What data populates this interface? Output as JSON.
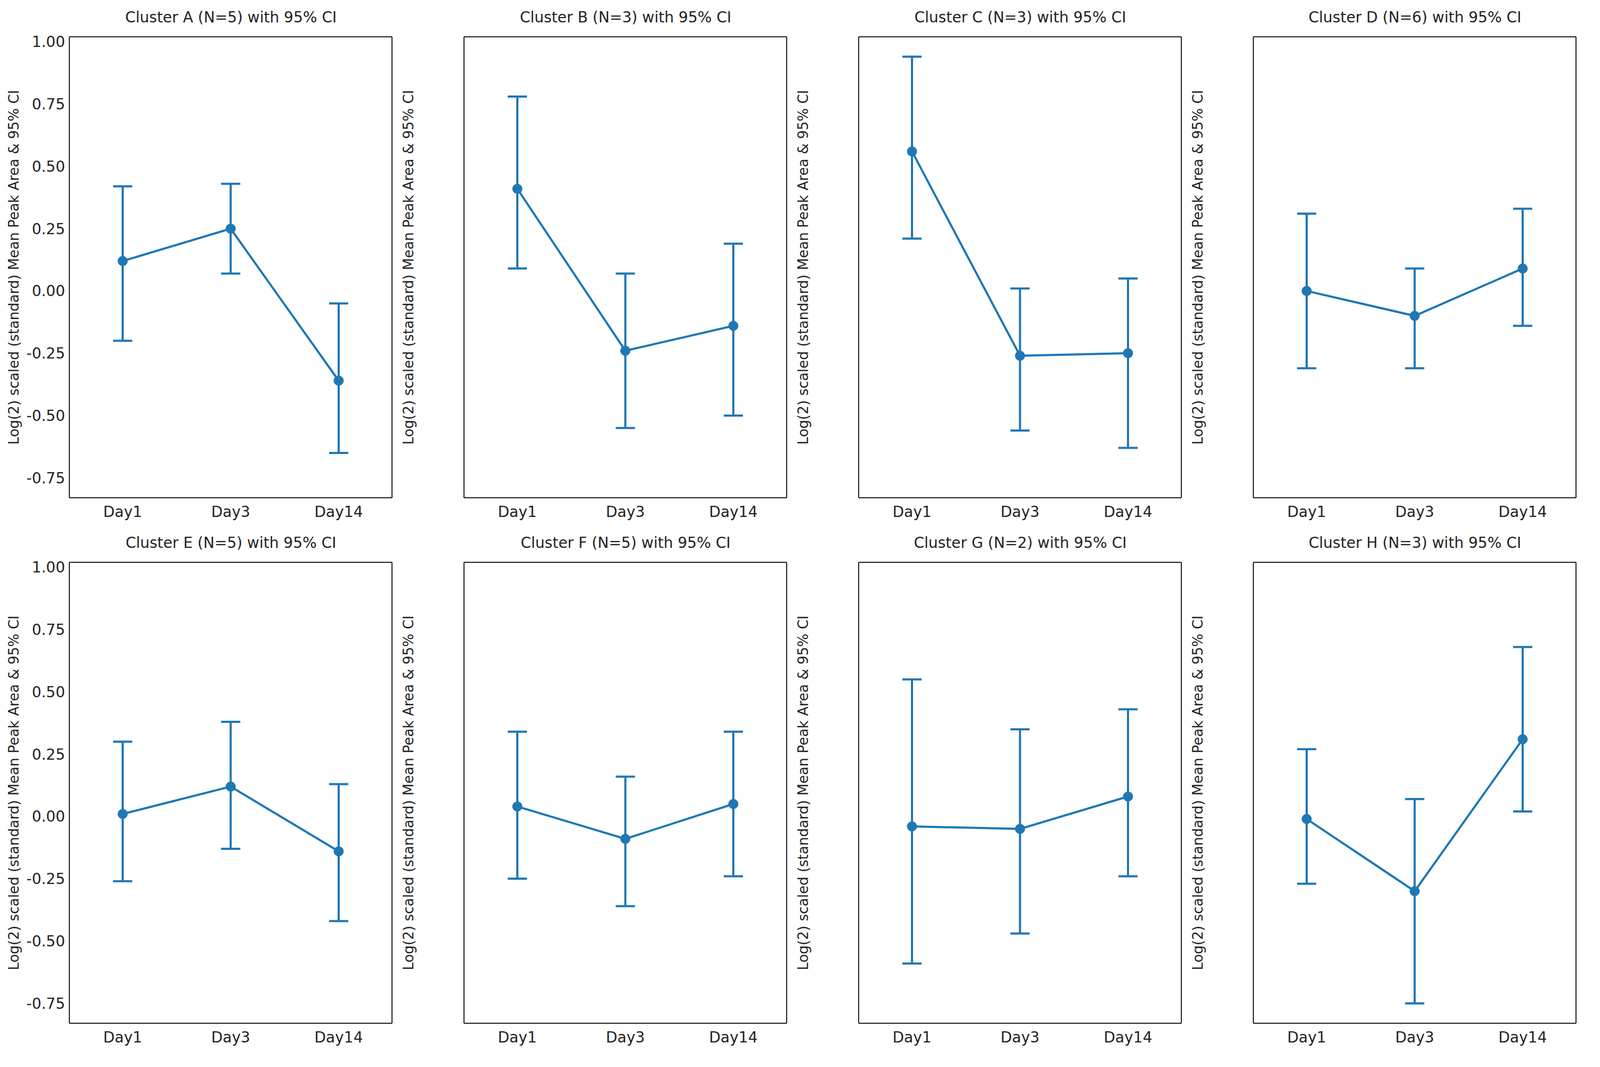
{
  "chart_data": [
    {
      "type": "line",
      "title": "Cluster A (N=5) with 95% CI",
      "ylabel": "Log(2) scaled (standard) Mean Peak Area & 95% CI",
      "categories": [
        "Day1",
        "Day3",
        "Day14"
      ],
      "values": [
        0.12,
        0.25,
        -0.36
      ],
      "ci_low": [
        -0.2,
        0.07,
        -0.65
      ],
      "ci_high": [
        0.42,
        0.43,
        -0.05
      ],
      "color": "#1f77b4",
      "marker": "o",
      "ylim": [
        -0.83,
        1.02
      ],
      "yticks": [
        {
          "value": -0.75,
          "label": "-0.75"
        },
        {
          "value": -0.5,
          "label": "-0.50"
        },
        {
          "value": -0.25,
          "label": "-0.25"
        },
        {
          "value": 0,
          "label": "0.00"
        },
        {
          "value": 0.25,
          "label": "0.25"
        },
        {
          "value": 0.5,
          "label": "0.50"
        },
        {
          "value": 0.75,
          "label": "0.75"
        },
        {
          "value": 1,
          "label": "1.00"
        }
      ]
    },
    {
      "type": "line",
      "title": "Cluster B (N=3) with 95% CI",
      "ylabel": "Log(2) scaled (standard) Mean Peak Area & 95% CI",
      "categories": [
        "Day1",
        "Day3",
        "Day14"
      ],
      "values": [
        0.41,
        -0.24,
        -0.14
      ],
      "ci_low": [
        0.09,
        -0.55,
        -0.5
      ],
      "ci_high": [
        0.78,
        0.07,
        0.19
      ],
      "color": "#1f77b4",
      "marker": "o",
      "ylim": [
        -0.83,
        1.02
      ],
      "yticks": [
        {
          "value": -0.75,
          "label": "-0.75"
        },
        {
          "value": -0.5,
          "label": "-0.50"
        },
        {
          "value": -0.25,
          "label": "-0.25"
        },
        {
          "value": 0,
          "label": "0.00"
        },
        {
          "value": 0.25,
          "label": "0.25"
        },
        {
          "value": 0.5,
          "label": "0.50"
        },
        {
          "value": 0.75,
          "label": "0.75"
        },
        {
          "value": 1,
          "label": "1.00"
        }
      ],
      "tick_labels": "x"
    },
    {
      "type": "line",
      "title": "Cluster C (N=3) with 95% CI",
      "ylabel": "Log(2) scaled (standard) Mean Peak Area & 95% CI",
      "categories": [
        "Day1",
        "Day3",
        "Day14"
      ],
      "values": [
        0.56,
        -0.26,
        -0.25
      ],
      "ci_low": [
        0.21,
        -0.56,
        -0.63
      ],
      "ci_high": [
        0.94,
        0.01,
        0.05
      ],
      "color": "#1f77b4",
      "marker": "o",
      "ylim": [
        -0.83,
        1.02
      ],
      "yticks": [
        {
          "value": -0.75,
          "label": "-0.75"
        },
        {
          "value": -0.5,
          "label": "-0.50"
        },
        {
          "value": -0.25,
          "label": "-0.25"
        },
        {
          "value": 0,
          "label": "0.00"
        },
        {
          "value": 0.25,
          "label": "0.25"
        },
        {
          "value": 0.5,
          "label": "0.50"
        },
        {
          "value": 0.75,
          "label": "0.75"
        },
        {
          "value": 1,
          "label": "1.00"
        }
      ],
      "tick_labels": "x"
    },
    {
      "type": "line",
      "title": "Cluster D (N=6) with 95% CI",
      "ylabel": "Log(2) scaled (standard) Mean Peak Area & 95% CI",
      "categories": [
        "Day1",
        "Day3",
        "Day14"
      ],
      "values": [
        0.0,
        -0.1,
        0.09
      ],
      "ci_low": [
        -0.31,
        -0.31,
        -0.14
      ],
      "ci_high": [
        0.31,
        0.09,
        0.33
      ],
      "color": "#1f77b4",
      "marker": "o",
      "ylim": [
        -0.83,
        1.02
      ],
      "yticks": [
        {
          "value": -0.75,
          "label": "-0.75"
        },
        {
          "value": -0.5,
          "label": "-0.50"
        },
        {
          "value": -0.25,
          "label": "-0.25"
        },
        {
          "value": 0,
          "label": "0.00"
        },
        {
          "value": 0.25,
          "label": "0.25"
        },
        {
          "value": 0.5,
          "label": "0.50"
        },
        {
          "value": 0.75,
          "label": "0.75"
        },
        {
          "value": 1,
          "label": "1.00"
        }
      ],
      "tick_labels": "x"
    },
    {
      "type": "line",
      "title": "Cluster E (N=5) with 95% CI",
      "ylabel": "Log(2) scaled (standard) Mean Peak Area & 95% CI",
      "categories": [
        "Day1",
        "Day3",
        "Day14"
      ],
      "values": [
        0.01,
        0.12,
        -0.14
      ],
      "ci_low": [
        -0.26,
        -0.13,
        -0.42
      ],
      "ci_high": [
        0.3,
        0.38,
        0.13
      ],
      "color": "#1f77b4",
      "marker": "o",
      "ylim": [
        -0.83,
        1.02
      ],
      "yticks": [
        {
          "value": -0.75,
          "label": "-0.75"
        },
        {
          "value": -0.5,
          "label": "-0.50"
        },
        {
          "value": -0.25,
          "label": "-0.25"
        },
        {
          "value": 0,
          "label": "0.00"
        },
        {
          "value": 0.25,
          "label": "0.25"
        },
        {
          "value": 0.5,
          "label": "0.50"
        },
        {
          "value": 0.75,
          "label": "0.75"
        },
        {
          "value": 1,
          "label": "1.00"
        }
      ]
    },
    {
      "type": "line",
      "title": "Cluster F (N=5) with 95% CI",
      "ylabel": "Log(2) scaled (standard) Mean Peak Area & 95% CI",
      "categories": [
        "Day1",
        "Day3",
        "Day14"
      ],
      "values": [
        0.04,
        -0.09,
        0.05
      ],
      "ci_low": [
        -0.25,
        -0.36,
        -0.24
      ],
      "ci_high": [
        0.34,
        0.16,
        0.34
      ],
      "color": "#1f77b4",
      "marker": "o",
      "ylim": [
        -0.83,
        1.02
      ],
      "yticks": [
        {
          "value": -0.75,
          "label": "-0.75"
        },
        {
          "value": -0.5,
          "label": "-0.50"
        },
        {
          "value": -0.25,
          "label": "-0.25"
        },
        {
          "value": 0,
          "label": "0.00"
        },
        {
          "value": 0.25,
          "label": "0.25"
        },
        {
          "value": 0.5,
          "label": "0.50"
        },
        {
          "value": 0.75,
          "label": "0.75"
        },
        {
          "value": 1,
          "label": "1.00"
        }
      ],
      "tick_labels": "x"
    },
    {
      "type": "line",
      "title": "Cluster G (N=2) with 95% CI",
      "ylabel": "Log(2) scaled (standard) Mean Peak Area & 95% CI",
      "categories": [
        "Day1",
        "Day3",
        "Day14"
      ],
      "values": [
        -0.04,
        -0.05,
        0.08
      ],
      "ci_low": [
        -0.59,
        -0.47,
        -0.24
      ],
      "ci_high": [
        0.55,
        0.35,
        0.43
      ],
      "color": "#1f77b4",
      "marker": "o",
      "ylim": [
        -0.83,
        1.02
      ],
      "yticks": [
        {
          "value": -0.75,
          "label": "-0.75"
        },
        {
          "value": -0.5,
          "label": "-0.50"
        },
        {
          "value": -0.25,
          "label": "-0.25"
        },
        {
          "value": 0,
          "label": "0.00"
        },
        {
          "value": 0.25,
          "label": "0.25"
        },
        {
          "value": 0.5,
          "label": "0.50"
        },
        {
          "value": 0.75,
          "label": "0.75"
        },
        {
          "value": 1,
          "label": "1.00"
        }
      ],
      "tick_labels": "x"
    },
    {
      "type": "line",
      "title": "Cluster H (N=3) with 95% CI",
      "ylabel": "Log(2) scaled (standard) Mean Peak Area & 95% CI",
      "categories": [
        "Day1",
        "Day3",
        "Day14"
      ],
      "values": [
        -0.01,
        -0.3,
        0.31
      ],
      "ci_low": [
        -0.27,
        -0.75,
        0.02
      ],
      "ci_high": [
        0.27,
        0.07,
        0.68
      ],
      "color": "#1f77b4",
      "marker": "o",
      "ylim": [
        -0.83,
        1.02
      ],
      "yticks": [
        {
          "value": -0.75,
          "label": "-0.75"
        },
        {
          "value": -0.5,
          "label": "-0.50"
        },
        {
          "value": -0.25,
          "label": "-0.25"
        },
        {
          "value": 0,
          "label": "0.00"
        },
        {
          "value": 0.25,
          "label": "0.25"
        },
        {
          "value": 0.5,
          "label": "0.50"
        },
        {
          "value": 0.75,
          "label": "0.75"
        },
        {
          "value": 1,
          "label": "1.00"
        }
      ],
      "tick_labels": "x"
    }
  ]
}
